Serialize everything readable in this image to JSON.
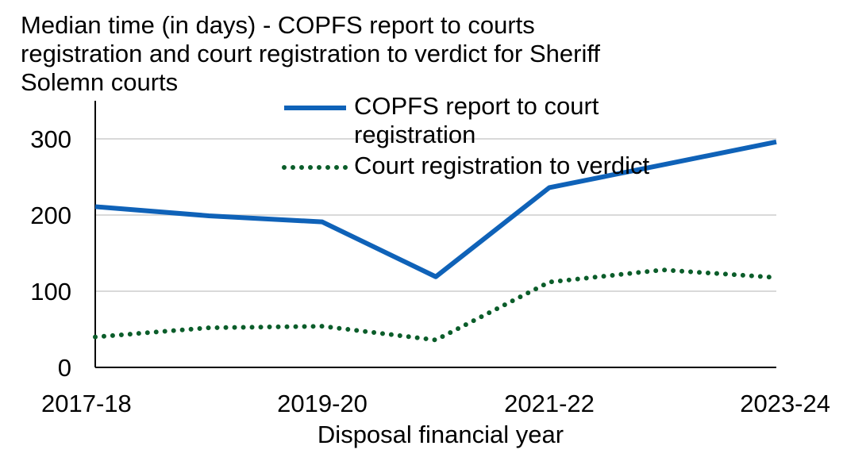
{
  "chart_data": {
    "type": "line",
    "title": "Median time (in days) - COPFS report to courts registration and court registration to verdict for Sheriff Solemn courts",
    "x_label": "Disposal financial year",
    "categories": [
      "2017-18",
      null,
      "2019-20",
      null,
      "2021-22",
      null,
      "2023-24"
    ],
    "series": [
      {
        "name": "COPFS report to court registration",
        "color": "#0f62b8",
        "style": "solid",
        "values": [
          211,
          199,
          191,
          119,
          236,
          266,
          296
        ]
      },
      {
        "name": "Court registration to verdict",
        "color": "#0b5d2a",
        "style": "dotted",
        "values": [
          40,
          52,
          54,
          36,
          112,
          128,
          118
        ]
      }
    ],
    "ylim": [
      0,
      350
    ],
    "yticks": [
      0,
      100,
      200,
      300
    ],
    "grid": true
  }
}
